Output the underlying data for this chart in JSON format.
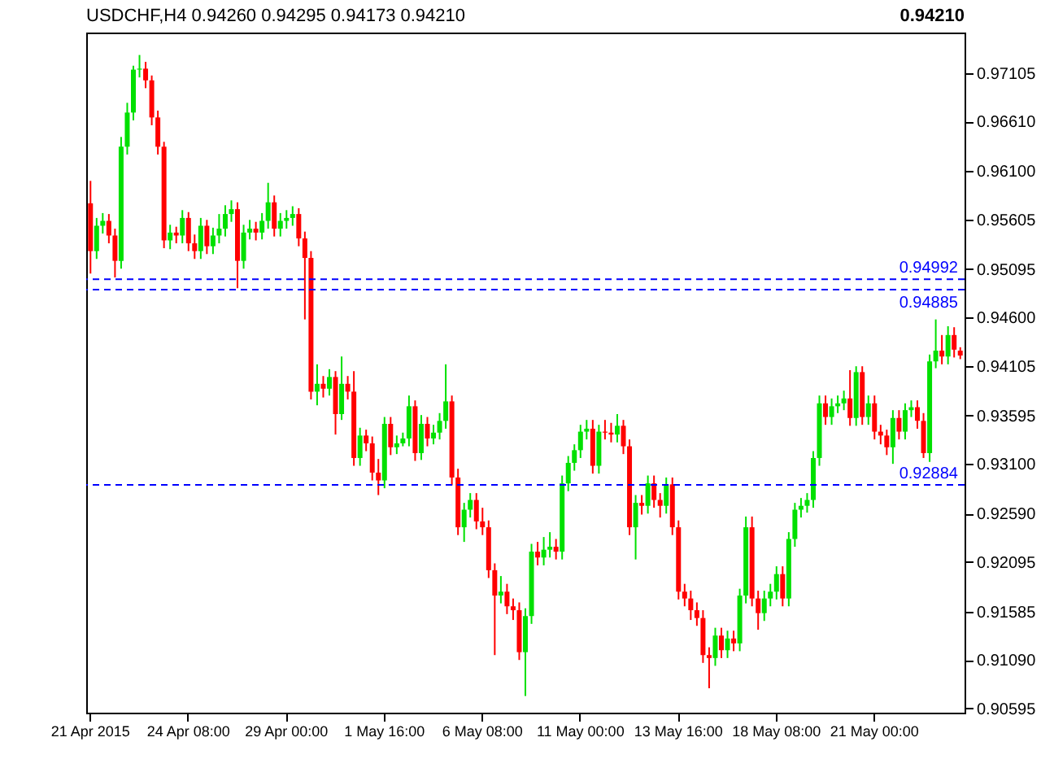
{
  "chart_data": {
    "type": "candlestick",
    "title": "USDCHF,H4  0.94260 0.94295 0.94173 0.94210",
    "categories": [
      "21 Apr 2015",
      null,
      null,
      null,
      null,
      null,
      null,
      null,
      null,
      null,
      null,
      null,
      null,
      null,
      null,
      null,
      "24 Apr 08:00",
      null,
      null,
      null,
      null,
      null,
      null,
      null,
      null,
      null,
      null,
      null,
      null,
      null,
      null,
      null,
      "29 Apr 00:00",
      null,
      null,
      null,
      null,
      null,
      null,
      null,
      null,
      null,
      null,
      null,
      null,
      null,
      null,
      null,
      "1 May 16:00",
      null,
      null,
      null,
      null,
      null,
      null,
      null,
      null,
      null,
      null,
      null,
      null,
      null,
      null,
      null,
      "6 May 08:00",
      null,
      null,
      null,
      null,
      null,
      null,
      null,
      null,
      null,
      null,
      null,
      null,
      null,
      null,
      null,
      "11 May 00:00",
      null,
      null,
      null,
      null,
      null,
      null,
      null,
      null,
      null,
      null,
      null,
      null,
      null,
      null,
      null,
      "13 May 16:00",
      null,
      null,
      null,
      null,
      null,
      null,
      null,
      null,
      null,
      null,
      null,
      null,
      null,
      null,
      null,
      "18 May 08:00",
      null,
      null,
      null,
      null,
      null,
      null,
      null,
      null,
      null,
      null,
      null,
      null,
      null,
      null,
      null,
      "21 May 00:00",
      null,
      null,
      null,
      null,
      null,
      null,
      null,
      null,
      null,
      null,
      null,
      null,
      null,
      null
    ],
    "ohlc": [
      [
        0.9577,
        0.96,
        0.9505,
        0.9528
      ],
      [
        0.9528,
        0.9562,
        0.952,
        0.9554
      ],
      [
        0.9554,
        0.9567,
        0.9546,
        0.9559
      ],
      [
        0.9559,
        0.9566,
        0.9536,
        0.9544
      ],
      [
        0.9544,
        0.9551,
        0.9501,
        0.9518
      ],
      [
        0.9518,
        0.9645,
        0.951,
        0.9635
      ],
      [
        0.9635,
        0.968,
        0.9627,
        0.967
      ],
      [
        0.967,
        0.9718,
        0.9662,
        0.9714
      ],
      [
        0.9714,
        0.9729,
        0.9706,
        0.9715
      ],
      [
        0.9715,
        0.9722,
        0.9695,
        0.9703
      ],
      [
        0.9703,
        0.9708,
        0.9657,
        0.9665
      ],
      [
        0.9665,
        0.9672,
        0.9627,
        0.9635
      ],
      [
        0.9635,
        0.964,
        0.9531,
        0.9539
      ],
      [
        0.9539,
        0.9555,
        0.953,
        0.9547
      ],
      [
        0.9547,
        0.9553,
        0.9536,
        0.9544
      ],
      [
        0.9544,
        0.957,
        0.9536,
        0.9562
      ],
      [
        0.9562,
        0.9568,
        0.9528,
        0.9536
      ],
      [
        0.9536,
        0.9545,
        0.952,
        0.9528
      ],
      [
        0.9528,
        0.9562,
        0.952,
        0.9554
      ],
      [
        0.9554,
        0.956,
        0.9525,
        0.9533
      ],
      [
        0.9533,
        0.9552,
        0.9525,
        0.9544
      ],
      [
        0.9544,
        0.9566,
        0.9536,
        0.9551
      ],
      [
        0.9551,
        0.9575,
        0.9543,
        0.9566
      ],
      [
        0.9566,
        0.958,
        0.9558,
        0.9571
      ],
      [
        0.9571,
        0.9578,
        0.949,
        0.9518
      ],
      [
        0.9518,
        0.9555,
        0.951,
        0.9547
      ],
      [
        0.9547,
        0.956,
        0.954,
        0.9551
      ],
      [
        0.9551,
        0.9558,
        0.9539,
        0.9547
      ],
      [
        0.9547,
        0.9567,
        0.954,
        0.9559
      ],
      [
        0.9559,
        0.9598,
        0.9551,
        0.9578
      ],
      [
        0.9578,
        0.9585,
        0.9543,
        0.9551
      ],
      [
        0.9551,
        0.9567,
        0.9543,
        0.9559
      ],
      [
        0.9559,
        0.957,
        0.9551,
        0.9562
      ],
      [
        0.9562,
        0.9574,
        0.9554,
        0.9566
      ],
      [
        0.9566,
        0.9572,
        0.9533,
        0.9541
      ],
      [
        0.9541,
        0.9548,
        0.9458,
        0.9521
      ],
      [
        0.9521,
        0.9528,
        0.9376,
        0.9384
      ],
      [
        0.9384,
        0.9412,
        0.937,
        0.9392
      ],
      [
        0.9392,
        0.94,
        0.9378,
        0.9387
      ],
      [
        0.9387,
        0.9407,
        0.938,
        0.9399
      ],
      [
        0.9399,
        0.9405,
        0.934,
        0.9361
      ],
      [
        0.9361,
        0.942,
        0.9355,
        0.9392
      ],
      [
        0.9392,
        0.94,
        0.9376,
        0.9384
      ],
      [
        0.9384,
        0.9405,
        0.9308,
        0.9316
      ],
      [
        0.9316,
        0.9347,
        0.9308,
        0.9339
      ],
      [
        0.9339,
        0.9345,
        0.9323,
        0.9331
      ],
      [
        0.9331,
        0.9338,
        0.9293,
        0.9301
      ],
      [
        0.9301,
        0.9315,
        0.9278,
        0.9293
      ],
      [
        0.9293,
        0.9358,
        0.9285,
        0.9351
      ],
      [
        0.9351,
        0.9358,
        0.9319,
        0.9327
      ],
      [
        0.9327,
        0.9339,
        0.932,
        0.9331
      ],
      [
        0.9331,
        0.9342,
        0.9328,
        0.9336
      ],
      [
        0.9336,
        0.938,
        0.9328,
        0.9369
      ],
      [
        0.9369,
        0.9375,
        0.9313,
        0.9321
      ],
      [
        0.9321,
        0.936,
        0.9314,
        0.9351
      ],
      [
        0.9351,
        0.9358,
        0.9328,
        0.9336
      ],
      [
        0.9336,
        0.935,
        0.933,
        0.9342
      ],
      [
        0.9342,
        0.9362,
        0.9335,
        0.9354
      ],
      [
        0.9354,
        0.9412,
        0.9346,
        0.9374
      ],
      [
        0.9374,
        0.938,
        0.9288,
        0.9296
      ],
      [
        0.9296,
        0.9305,
        0.9237,
        0.9245
      ],
      [
        0.9245,
        0.927,
        0.923,
        0.9263
      ],
      [
        0.9263,
        0.928,
        0.9255,
        0.9273
      ],
      [
        0.9273,
        0.928,
        0.9243,
        0.9251
      ],
      [
        0.9251,
        0.9265,
        0.9237,
        0.9245
      ],
      [
        0.9245,
        0.9252,
        0.9193,
        0.9201
      ],
      [
        0.9201,
        0.9208,
        0.9114,
        0.9175
      ],
      [
        0.9175,
        0.9195,
        0.9167,
        0.9179
      ],
      [
        0.9179,
        0.9187,
        0.9156,
        0.9164
      ],
      [
        0.9164,
        0.9172,
        0.915,
        0.916
      ],
      [
        0.916,
        0.9168,
        0.9109,
        0.9117
      ],
      [
        0.9117,
        0.9162,
        0.9072,
        0.9154
      ],
      [
        0.9154,
        0.9228,
        0.9146,
        0.922
      ],
      [
        0.922,
        0.923,
        0.9206,
        0.9214
      ],
      [
        0.9214,
        0.9235,
        0.9206,
        0.9222
      ],
      [
        0.9222,
        0.924,
        0.9214,
        0.9225
      ],
      [
        0.9225,
        0.9233,
        0.9212,
        0.922
      ],
      [
        0.922,
        0.9298,
        0.9212,
        0.929
      ],
      [
        0.929,
        0.9318,
        0.9282,
        0.9311
      ],
      [
        0.9311,
        0.933,
        0.9303,
        0.9324
      ],
      [
        0.9324,
        0.935,
        0.9316,
        0.9343
      ],
      [
        0.9343,
        0.9355,
        0.9335,
        0.9346
      ],
      [
        0.9346,
        0.9355,
        0.93,
        0.9308
      ],
      [
        0.9308,
        0.935,
        0.93,
        0.9343
      ],
      [
        0.9343,
        0.9355,
        0.9335,
        0.9342
      ],
      [
        0.9342,
        0.9352,
        0.9332,
        0.934
      ],
      [
        0.934,
        0.9361,
        0.9332,
        0.9349
      ],
      [
        0.9349,
        0.9355,
        0.932,
        0.9328
      ],
      [
        0.9328,
        0.9335,
        0.9237,
        0.9245
      ],
      [
        0.9245,
        0.9278,
        0.9212,
        0.927
      ],
      [
        0.927,
        0.9278,
        0.9258,
        0.9267
      ],
      [
        0.9267,
        0.9298,
        0.9259,
        0.929
      ],
      [
        0.929,
        0.9298,
        0.9265,
        0.9273
      ],
      [
        0.9273,
        0.928,
        0.9255,
        0.9267
      ],
      [
        0.9267,
        0.9296,
        0.9259,
        0.9289
      ],
      [
        0.9289,
        0.9296,
        0.9237,
        0.9245
      ],
      [
        0.9245,
        0.9252,
        0.9171,
        0.9179
      ],
      [
        0.9179,
        0.9187,
        0.9164,
        0.9172
      ],
      [
        0.9172,
        0.918,
        0.915,
        0.916
      ],
      [
        0.916,
        0.9168,
        0.9144,
        0.9152
      ],
      [
        0.9152,
        0.916,
        0.9106,
        0.9114
      ],
      [
        0.9114,
        0.9122,
        0.908,
        0.9111
      ],
      [
        0.9111,
        0.9142,
        0.9103,
        0.9134
      ],
      [
        0.9134,
        0.9142,
        0.9111,
        0.9119
      ],
      [
        0.9119,
        0.9139,
        0.9111,
        0.9131
      ],
      [
        0.9131,
        0.9139,
        0.9118,
        0.9126
      ],
      [
        0.9126,
        0.9182,
        0.9118,
        0.9175
      ],
      [
        0.9175,
        0.9256,
        0.9167,
        0.9245
      ],
      [
        0.9245,
        0.9256,
        0.9164,
        0.9172
      ],
      [
        0.9172,
        0.918,
        0.914,
        0.9157
      ],
      [
        0.9157,
        0.918,
        0.9149,
        0.9172
      ],
      [
        0.9172,
        0.9187,
        0.9164,
        0.9179
      ],
      [
        0.9179,
        0.9205,
        0.9171,
        0.9197
      ],
      [
        0.9197,
        0.9205,
        0.9164,
        0.9172
      ],
      [
        0.9172,
        0.924,
        0.9164,
        0.9233
      ],
      [
        0.9233,
        0.927,
        0.9225,
        0.9263
      ],
      [
        0.9263,
        0.9275,
        0.9255,
        0.9267
      ],
      [
        0.9267,
        0.928,
        0.926,
        0.9273
      ],
      [
        0.9273,
        0.9323,
        0.9265,
        0.9316
      ],
      [
        0.9316,
        0.938,
        0.9308,
        0.9372
      ],
      [
        0.9372,
        0.938,
        0.935,
        0.9358
      ],
      [
        0.9358,
        0.9377,
        0.935,
        0.9369
      ],
      [
        0.9369,
        0.938,
        0.9362,
        0.9372
      ],
      [
        0.9372,
        0.9385,
        0.9365,
        0.9377
      ],
      [
        0.9377,
        0.9406,
        0.9349,
        0.9357
      ],
      [
        0.9357,
        0.941,
        0.9349,
        0.9404
      ],
      [
        0.9404,
        0.941,
        0.935,
        0.9358
      ],
      [
        0.9358,
        0.938,
        0.935,
        0.9372
      ],
      [
        0.9372,
        0.938,
        0.9335,
        0.9343
      ],
      [
        0.9343,
        0.935,
        0.933,
        0.9339
      ],
      [
        0.9339,
        0.9345,
        0.9319,
        0.9327
      ],
      [
        0.9327,
        0.9365,
        0.931,
        0.9357
      ],
      [
        0.9357,
        0.9365,
        0.9335,
        0.9343
      ],
      [
        0.9343,
        0.9372,
        0.9335,
        0.9365
      ],
      [
        0.9365,
        0.9375,
        0.9358,
        0.9368
      ],
      [
        0.9368,
        0.9375,
        0.9346,
        0.9354
      ],
      [
        0.9354,
        0.9362,
        0.9316,
        0.9321
      ],
      [
        0.9321,
        0.9422,
        0.9312,
        0.9415
      ],
      [
        0.9415,
        0.9458,
        0.9408,
        0.9426
      ],
      [
        0.9426,
        0.9442,
        0.9412,
        0.942
      ],
      [
        0.942,
        0.9451,
        0.9412,
        0.9442
      ],
      [
        0.9442,
        0.945,
        0.9419,
        0.9427
      ],
      [
        0.9426,
        0.94295,
        0.94173,
        0.9421
      ]
    ],
    "ylim": [
      0.9055,
      0.9752
    ],
    "yticks": [
      {
        "value": 0.97105,
        "label": "0.97105"
      },
      {
        "value": 0.9661,
        "label": "0.96610"
      },
      {
        "value": 0.961,
        "label": "0.96100"
      },
      {
        "value": 0.95605,
        "label": "0.95605"
      },
      {
        "value": 0.95095,
        "label": "0.95095"
      },
      {
        "value": 0.946,
        "label": "0.94600"
      },
      {
        "value": 0.94105,
        "label": "0.94105"
      },
      {
        "value": 0.93595,
        "label": "0.93595"
      },
      {
        "value": 0.931,
        "label": "0.93100"
      },
      {
        "value": 0.9259,
        "label": "0.92590"
      },
      {
        "value": 0.92095,
        "label": "0.92095"
      },
      {
        "value": 0.91585,
        "label": "0.91585"
      },
      {
        "value": 0.9109,
        "label": "0.91090"
      },
      {
        "value": 0.90595,
        "label": "0.90595"
      }
    ],
    "ref_lines": [
      {
        "axis": "y",
        "value": 0.94992,
        "label": "0.94992",
        "color": "#0000ff",
        "line_style": "dashed"
      },
      {
        "axis": "y",
        "value": 0.94885,
        "label": "0.94885",
        "color": "#0000ff",
        "line_style": "dashed"
      },
      {
        "axis": "y",
        "value": 0.92884,
        "label": "0.92884",
        "color": "#0000ff",
        "line_style": "dashed"
      }
    ],
    "annotations": [
      "0.94210"
    ],
    "grid": false
  }
}
